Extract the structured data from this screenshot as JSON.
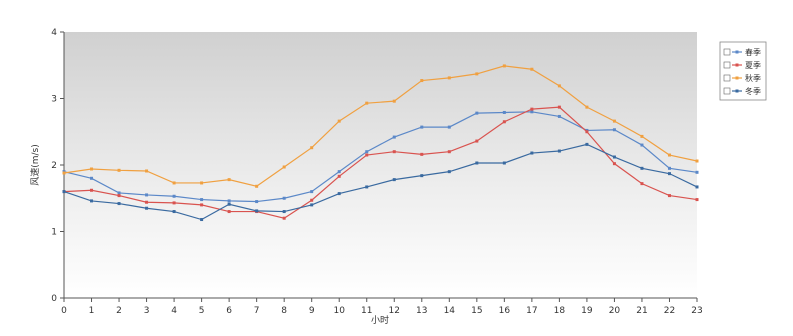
{
  "chart_data": {
    "type": "line",
    "title": "",
    "xlabel": "小时",
    "ylabel": "风速(m/s)",
    "x": [
      0,
      1,
      2,
      3,
      4,
      5,
      6,
      7,
      8,
      9,
      10,
      11,
      12,
      13,
      14,
      15,
      16,
      17,
      18,
      19,
      20,
      21,
      22,
      23
    ],
    "xlim": [
      0,
      23
    ],
    "ylim": [
      0,
      4
    ],
    "yticks": [
      0,
      1,
      2,
      3,
      4
    ],
    "grid": false,
    "legend_position": "right",
    "series": [
      {
        "name": "春季",
        "color": "#5b88c8",
        "values": [
          1.9,
          1.8,
          1.58,
          1.55,
          1.53,
          1.48,
          1.46,
          1.45,
          1.5,
          1.6,
          1.9,
          2.2,
          2.42,
          2.57,
          2.57,
          2.78,
          2.79,
          2.8,
          2.73,
          2.52,
          2.53,
          2.3,
          1.95,
          1.89
        ]
      },
      {
        "name": "夏季",
        "color": "#d9534f",
        "values": [
          1.6,
          1.62,
          1.54,
          1.44,
          1.43,
          1.4,
          1.3,
          1.3,
          1.2,
          1.47,
          1.83,
          2.15,
          2.2,
          2.16,
          2.2,
          2.36,
          2.65,
          2.84,
          2.87,
          2.5,
          2.02,
          1.72,
          1.54,
          1.48
        ]
      },
      {
        "name": "秋季",
        "color": "#f0a040",
        "values": [
          1.88,
          1.94,
          1.92,
          1.91,
          1.73,
          1.73,
          1.78,
          1.68,
          1.97,
          2.26,
          2.66,
          2.93,
          2.96,
          3.27,
          3.31,
          3.37,
          3.49,
          3.44,
          3.19,
          2.87,
          2.66,
          2.43,
          2.15,
          2.06
        ]
      },
      {
        "name": "冬季",
        "color": "#3a6aa0",
        "values": [
          1.6,
          1.46,
          1.42,
          1.35,
          1.3,
          1.18,
          1.41,
          1.31,
          1.3,
          1.4,
          1.57,
          1.67,
          1.78,
          1.84,
          1.9,
          2.03,
          2.03,
          2.18,
          2.21,
          2.31,
          2.12,
          1.95,
          1.87,
          1.67
        ]
      }
    ]
  }
}
